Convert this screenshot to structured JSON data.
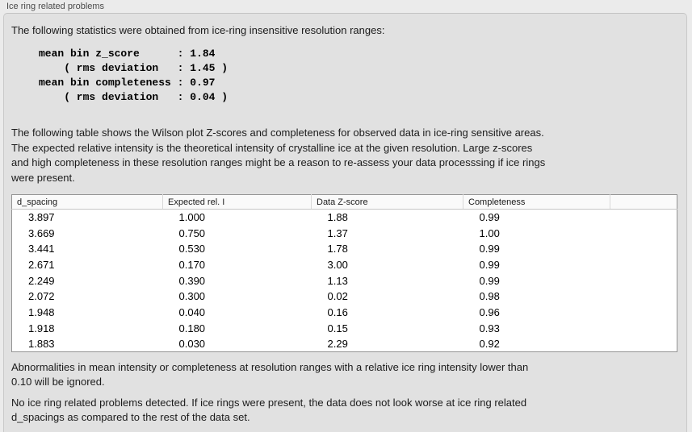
{
  "panel": {
    "title": "Ice ring related problems",
    "intro": "The following statistics were obtained from ice-ring insensitive resolution ranges:",
    "stats_block": "mean bin z_score      : 1.84\n    ( rms deviation   : 1.45 )\nmean bin completeness : 0.97\n    ( rms deviation   : 0.04 )",
    "description": "The following table shows the Wilson plot Z-scores and completeness for observed data in ice-ring sensitive areas.\nThe expected relative intensity is the theoretical intensity of crystalline ice at the given resolution. Large z-scores\nand high completeness in these resolution ranges might be a reason to re-assess your data processsing if ice rings\nwere present.",
    "note": "Abnormalities in mean intensity or completeness at resolution ranges with a relative ice ring intensity lower than\n0.10 will be ignored.",
    "conclusion": "No ice ring related problems detected. If ice rings were present, the data does not look worse at ice ring related\nd_spacings as compared to the rest of the data set."
  },
  "table": {
    "columns": [
      "d_spacing",
      "Expected rel. I",
      "Data Z-score",
      "Completeness"
    ],
    "rows": [
      [
        "3.897",
        "1.000",
        "1.88",
        "0.99"
      ],
      [
        "3.669",
        "0.750",
        "1.37",
        "1.00"
      ],
      [
        "3.441",
        "0.530",
        "1.78",
        "0.99"
      ],
      [
        "2.671",
        "0.170",
        "3.00",
        "0.99"
      ],
      [
        "2.249",
        "0.390",
        "1.13",
        "0.99"
      ],
      [
        "2.072",
        "0.300",
        "0.02",
        "0.98"
      ],
      [
        "1.948",
        "0.040",
        "0.16",
        "0.96"
      ],
      [
        "1.918",
        "0.180",
        "0.15",
        "0.93"
      ],
      [
        "1.883",
        "0.030",
        "2.29",
        "0.92"
      ]
    ]
  },
  "colors": {
    "page-bg": "#ebebeb",
    "box-bg": "#e1e1e1",
    "box-border": "#c9c9c9",
    "table-border": "#939393",
    "text": "#1b1b1b"
  }
}
